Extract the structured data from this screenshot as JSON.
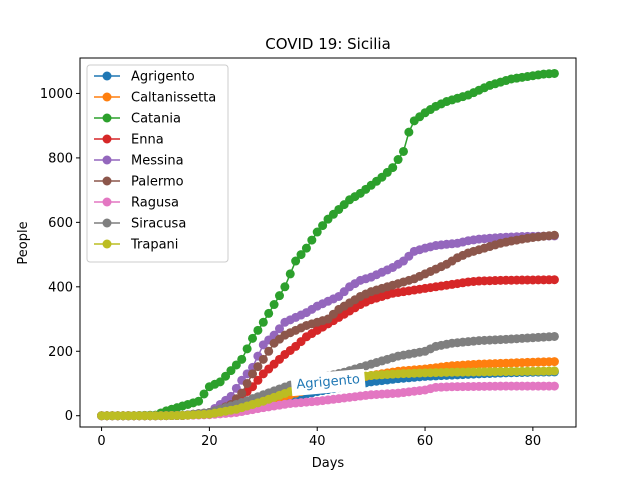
{
  "chart_data": {
    "type": "line",
    "title": "COVID 19: Sicilia",
    "xlabel": "Days",
    "ylabel": "People",
    "xlim": [
      -4,
      88
    ],
    "ylim": [
      -35,
      1110
    ],
    "xticks": [
      0,
      20,
      40,
      60,
      80
    ],
    "yticks": [
      0,
      200,
      400,
      600,
      800,
      1000
    ],
    "grid": false,
    "legend_position": "upper-left",
    "markers": "circle",
    "annotation": {
      "text": "Agrigento",
      "x": 42,
      "y": 108,
      "color": "#1f77b4"
    },
    "series": [
      {
        "name": "Agrigento",
        "color": "#1f77b4",
        "points": [
          [
            0,
            0
          ],
          [
            10,
            0
          ],
          [
            15,
            1
          ],
          [
            20,
            5
          ],
          [
            25,
            15
          ],
          [
            30,
            30
          ],
          [
            35,
            55
          ],
          [
            40,
            75
          ],
          [
            45,
            90
          ],
          [
            50,
            105
          ],
          [
            55,
            115
          ],
          [
            60,
            122
          ],
          [
            65,
            126
          ],
          [
            70,
            130
          ],
          [
            75,
            133
          ],
          [
            80,
            135
          ],
          [
            84,
            136
          ]
        ]
      },
      {
        "name": "Caltanissetta",
        "color": "#ff7f0e",
        "points": [
          [
            0,
            0
          ],
          [
            10,
            0
          ],
          [
            15,
            1
          ],
          [
            20,
            5
          ],
          [
            25,
            20
          ],
          [
            30,
            40
          ],
          [
            35,
            65
          ],
          [
            40,
            90
          ],
          [
            45,
            110
          ],
          [
            50,
            125
          ],
          [
            55,
            138
          ],
          [
            60,
            145
          ],
          [
            65,
            155
          ],
          [
            70,
            160
          ],
          [
            75,
            163
          ],
          [
            80,
            166
          ],
          [
            84,
            168
          ]
        ]
      },
      {
        "name": "Catania",
        "color": "#2ca02c",
        "points": [
          [
            0,
            0
          ],
          [
            5,
            0
          ],
          [
            10,
            2
          ],
          [
            12,
            15
          ],
          [
            14,
            25
          ],
          [
            16,
            35
          ],
          [
            18,
            45
          ],
          [
            20,
            90
          ],
          [
            22,
            105
          ],
          [
            24,
            140
          ],
          [
            26,
            175
          ],
          [
            28,
            240
          ],
          [
            30,
            290
          ],
          [
            32,
            345
          ],
          [
            34,
            400
          ],
          [
            36,
            480
          ],
          [
            38,
            520
          ],
          [
            40,
            570
          ],
          [
            42,
            610
          ],
          [
            44,
            640
          ],
          [
            46,
            670
          ],
          [
            48,
            690
          ],
          [
            50,
            715
          ],
          [
            52,
            740
          ],
          [
            54,
            770
          ],
          [
            56,
            820
          ],
          [
            57,
            880
          ],
          [
            58,
            915
          ],
          [
            60,
            940
          ],
          [
            62,
            960
          ],
          [
            64,
            975
          ],
          [
            66,
            985
          ],
          [
            68,
            995
          ],
          [
            70,
            1010
          ],
          [
            72,
            1025
          ],
          [
            74,
            1035
          ],
          [
            76,
            1045
          ],
          [
            78,
            1050
          ],
          [
            80,
            1055
          ],
          [
            82,
            1060
          ],
          [
            84,
            1062
          ]
        ]
      },
      {
        "name": "Enna",
        "color": "#d62728",
        "points": [
          [
            0,
            0
          ],
          [
            10,
            0
          ],
          [
            15,
            1
          ],
          [
            20,
            5
          ],
          [
            22,
            15
          ],
          [
            24,
            35
          ],
          [
            26,
            60
          ],
          [
            28,
            90
          ],
          [
            30,
            130
          ],
          [
            32,
            160
          ],
          [
            34,
            190
          ],
          [
            36,
            215
          ],
          [
            38,
            245
          ],
          [
            40,
            265
          ],
          [
            42,
            285
          ],
          [
            44,
            305
          ],
          [
            46,
            325
          ],
          [
            48,
            345
          ],
          [
            50,
            360
          ],
          [
            52,
            370
          ],
          [
            54,
            380
          ],
          [
            56,
            385
          ],
          [
            58,
            390
          ],
          [
            60,
            395
          ],
          [
            62,
            400
          ],
          [
            64,
            405
          ],
          [
            66,
            410
          ],
          [
            68,
            415
          ],
          [
            70,
            418
          ],
          [
            74,
            420
          ],
          [
            78,
            421
          ],
          [
            84,
            422
          ]
        ]
      },
      {
        "name": "Messina",
        "color": "#9467bd",
        "points": [
          [
            0,
            0
          ],
          [
            10,
            0
          ],
          [
            15,
            1
          ],
          [
            20,
            10
          ],
          [
            24,
            60
          ],
          [
            26,
            110
          ],
          [
            28,
            150
          ],
          [
            30,
            220
          ],
          [
            32,
            250
          ],
          [
            34,
            290
          ],
          [
            36,
            305
          ],
          [
            38,
            320
          ],
          [
            40,
            340
          ],
          [
            42,
            355
          ],
          [
            44,
            370
          ],
          [
            46,
            400
          ],
          [
            48,
            420
          ],
          [
            50,
            430
          ],
          [
            52,
            445
          ],
          [
            54,
            460
          ],
          [
            56,
            480
          ],
          [
            58,
            510
          ],
          [
            60,
            520
          ],
          [
            62,
            528
          ],
          [
            64,
            532
          ],
          [
            66,
            535
          ],
          [
            68,
            543
          ],
          [
            70,
            548
          ],
          [
            74,
            553
          ],
          [
            78,
            556
          ],
          [
            84,
            558
          ]
        ]
      },
      {
        "name": "Palermo",
        "color": "#8c564b",
        "points": [
          [
            0,
            0
          ],
          [
            10,
            0
          ],
          [
            15,
            1
          ],
          [
            20,
            10
          ],
          [
            22,
            20
          ],
          [
            24,
            35
          ],
          [
            26,
            70
          ],
          [
            28,
            130
          ],
          [
            30,
            175
          ],
          [
            32,
            225
          ],
          [
            34,
            250
          ],
          [
            36,
            265
          ],
          [
            38,
            280
          ],
          [
            40,
            290
          ],
          [
            42,
            300
          ],
          [
            44,
            330
          ],
          [
            46,
            350
          ],
          [
            48,
            370
          ],
          [
            50,
            385
          ],
          [
            52,
            395
          ],
          [
            54,
            405
          ],
          [
            56,
            415
          ],
          [
            58,
            425
          ],
          [
            60,
            440
          ],
          [
            62,
            455
          ],
          [
            64,
            470
          ],
          [
            66,
            490
          ],
          [
            68,
            505
          ],
          [
            70,
            515
          ],
          [
            72,
            525
          ],
          [
            74,
            535
          ],
          [
            76,
            542
          ],
          [
            78,
            548
          ],
          [
            80,
            553
          ],
          [
            82,
            557
          ],
          [
            84,
            560
          ]
        ]
      },
      {
        "name": "Ragusa",
        "color": "#e377c2",
        "points": [
          [
            0,
            0
          ],
          [
            10,
            0
          ],
          [
            15,
            1
          ],
          [
            20,
            3
          ],
          [
            25,
            10
          ],
          [
            30,
            25
          ],
          [
            35,
            38
          ],
          [
            40,
            45
          ],
          [
            45,
            55
          ],
          [
            50,
            65
          ],
          [
            55,
            70
          ],
          [
            60,
            80
          ],
          [
            62,
            88
          ],
          [
            65,
            90
          ],
          [
            70,
            91
          ],
          [
            75,
            92
          ],
          [
            80,
            92
          ],
          [
            84,
            92
          ]
        ]
      },
      {
        "name": "Siracusa",
        "color": "#7f7f7f",
        "points": [
          [
            0,
            0
          ],
          [
            10,
            0
          ],
          [
            15,
            1
          ],
          [
            20,
            10
          ],
          [
            25,
            35
          ],
          [
            30,
            65
          ],
          [
            35,
            95
          ],
          [
            40,
            115
          ],
          [
            45,
            135
          ],
          [
            50,
            160
          ],
          [
            55,
            185
          ],
          [
            60,
            200
          ],
          [
            62,
            215
          ],
          [
            65,
            225
          ],
          [
            70,
            233
          ],
          [
            75,
            237
          ],
          [
            80,
            242
          ],
          [
            84,
            246
          ]
        ]
      },
      {
        "name": "Trapani",
        "color": "#bcbd22",
        "points": [
          [
            0,
            0
          ],
          [
            10,
            0
          ],
          [
            15,
            1
          ],
          [
            20,
            5
          ],
          [
            25,
            20
          ],
          [
            30,
            45
          ],
          [
            35,
            75
          ],
          [
            40,
            100
          ],
          [
            45,
            115
          ],
          [
            50,
            125
          ],
          [
            55,
            130
          ],
          [
            60,
            133
          ],
          [
            65,
            135
          ],
          [
            70,
            136
          ],
          [
            75,
            137
          ],
          [
            80,
            138
          ],
          [
            84,
            139
          ]
        ]
      }
    ]
  }
}
